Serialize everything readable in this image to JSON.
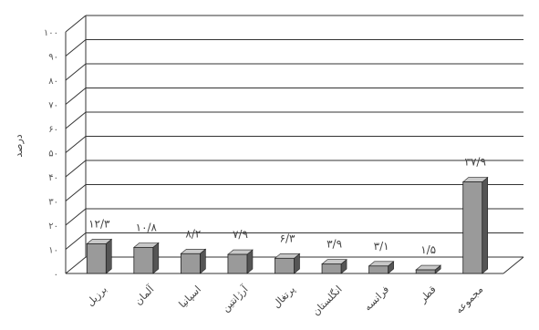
{
  "chart_data": {
    "type": "bar",
    "title": "",
    "xlabel": "",
    "ylabel": "درصد",
    "ylim": [
      0,
      100
    ],
    "yticks": [
      0,
      10,
      20,
      30,
      40,
      50,
      60,
      70,
      80,
      90,
      100
    ],
    "ytick_labels": [
      "۰",
      "۱۰",
      "۲۰",
      "۳۰",
      "۴۰",
      "۵۰",
      "۶۰",
      "۷۰",
      "۸۰",
      "۹۰",
      "۱۰۰"
    ],
    "grid": true,
    "categories": [
      "برزیل",
      "آلمان",
      "اسپانیا",
      "آرژانتین",
      "پرتغال",
      "انگلستان",
      "فرانسه",
      "قطر",
      "مجموعه"
    ],
    "values": [
      12.3,
      10.8,
      8.2,
      7.9,
      6.3,
      3.9,
      3.1,
      1.5,
      37.9
    ],
    "data_labels": [
      "۱۲/۳",
      "۱۰/۸",
      "۸/۲",
      "۷/۹",
      "۶/۳",
      "۳/۹",
      "۳/۱",
      "۱/۵",
      "۳۷/۹"
    ],
    "bar_color": "#9a9a9a",
    "bar_top_color": "#c8c8c8",
    "bar_side_color": "#555555",
    "grid_color": "#333333"
  }
}
